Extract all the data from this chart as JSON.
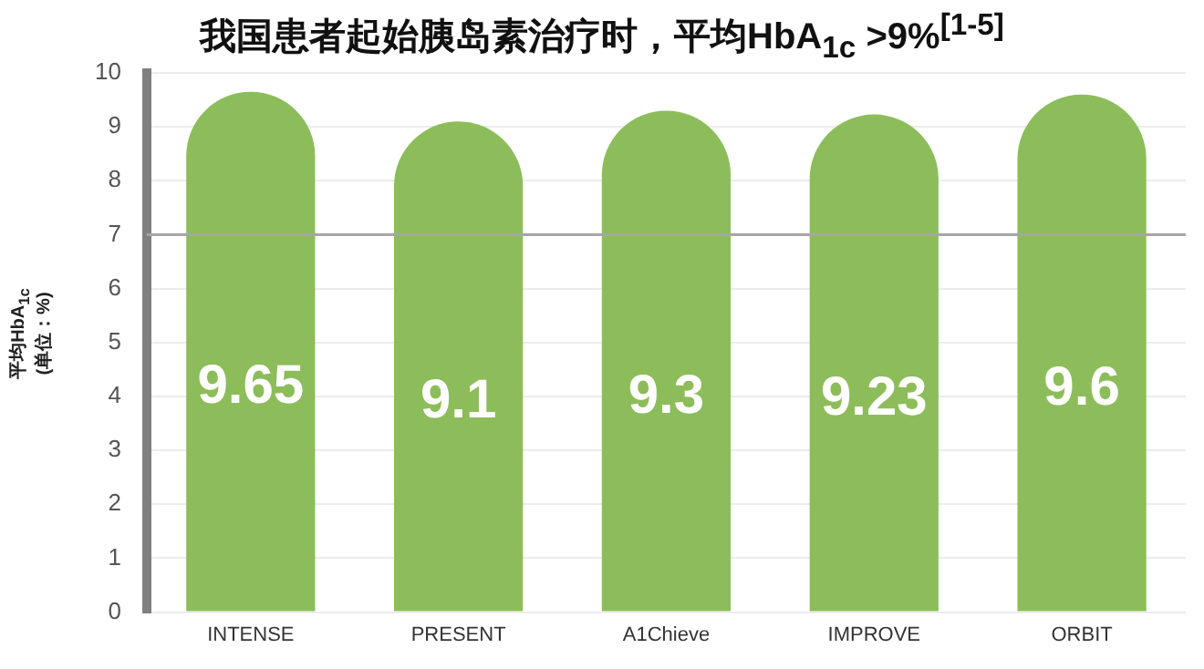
{
  "chart_data": {
    "type": "bar",
    "title": "我国患者起始胰岛素治疗时，平均HbA$_{1c}$ >9%$^{[1-5]}$",
    "ylabel": "平均HbA$_{1c}$\n(单位：%)",
    "categories": [
      "INTENSE",
      "PRESENT",
      "A1Chieve",
      "IMPROVE",
      "ORBIT"
    ],
    "values": [
      9.65,
      9.1,
      9.3,
      9.23,
      9.6
    ],
    "color": "#8cbd5a",
    "ylim": [
      0,
      10
    ],
    "yticks": [
      0,
      1,
      2,
      3,
      4,
      5,
      6,
      7,
      8,
      9,
      10
    ],
    "grid": "y",
    "data_labels": true,
    "ref_lines": [
      {
        "axis": "y",
        "value": 7,
        "color": "#a6a6a6"
      }
    ]
  }
}
